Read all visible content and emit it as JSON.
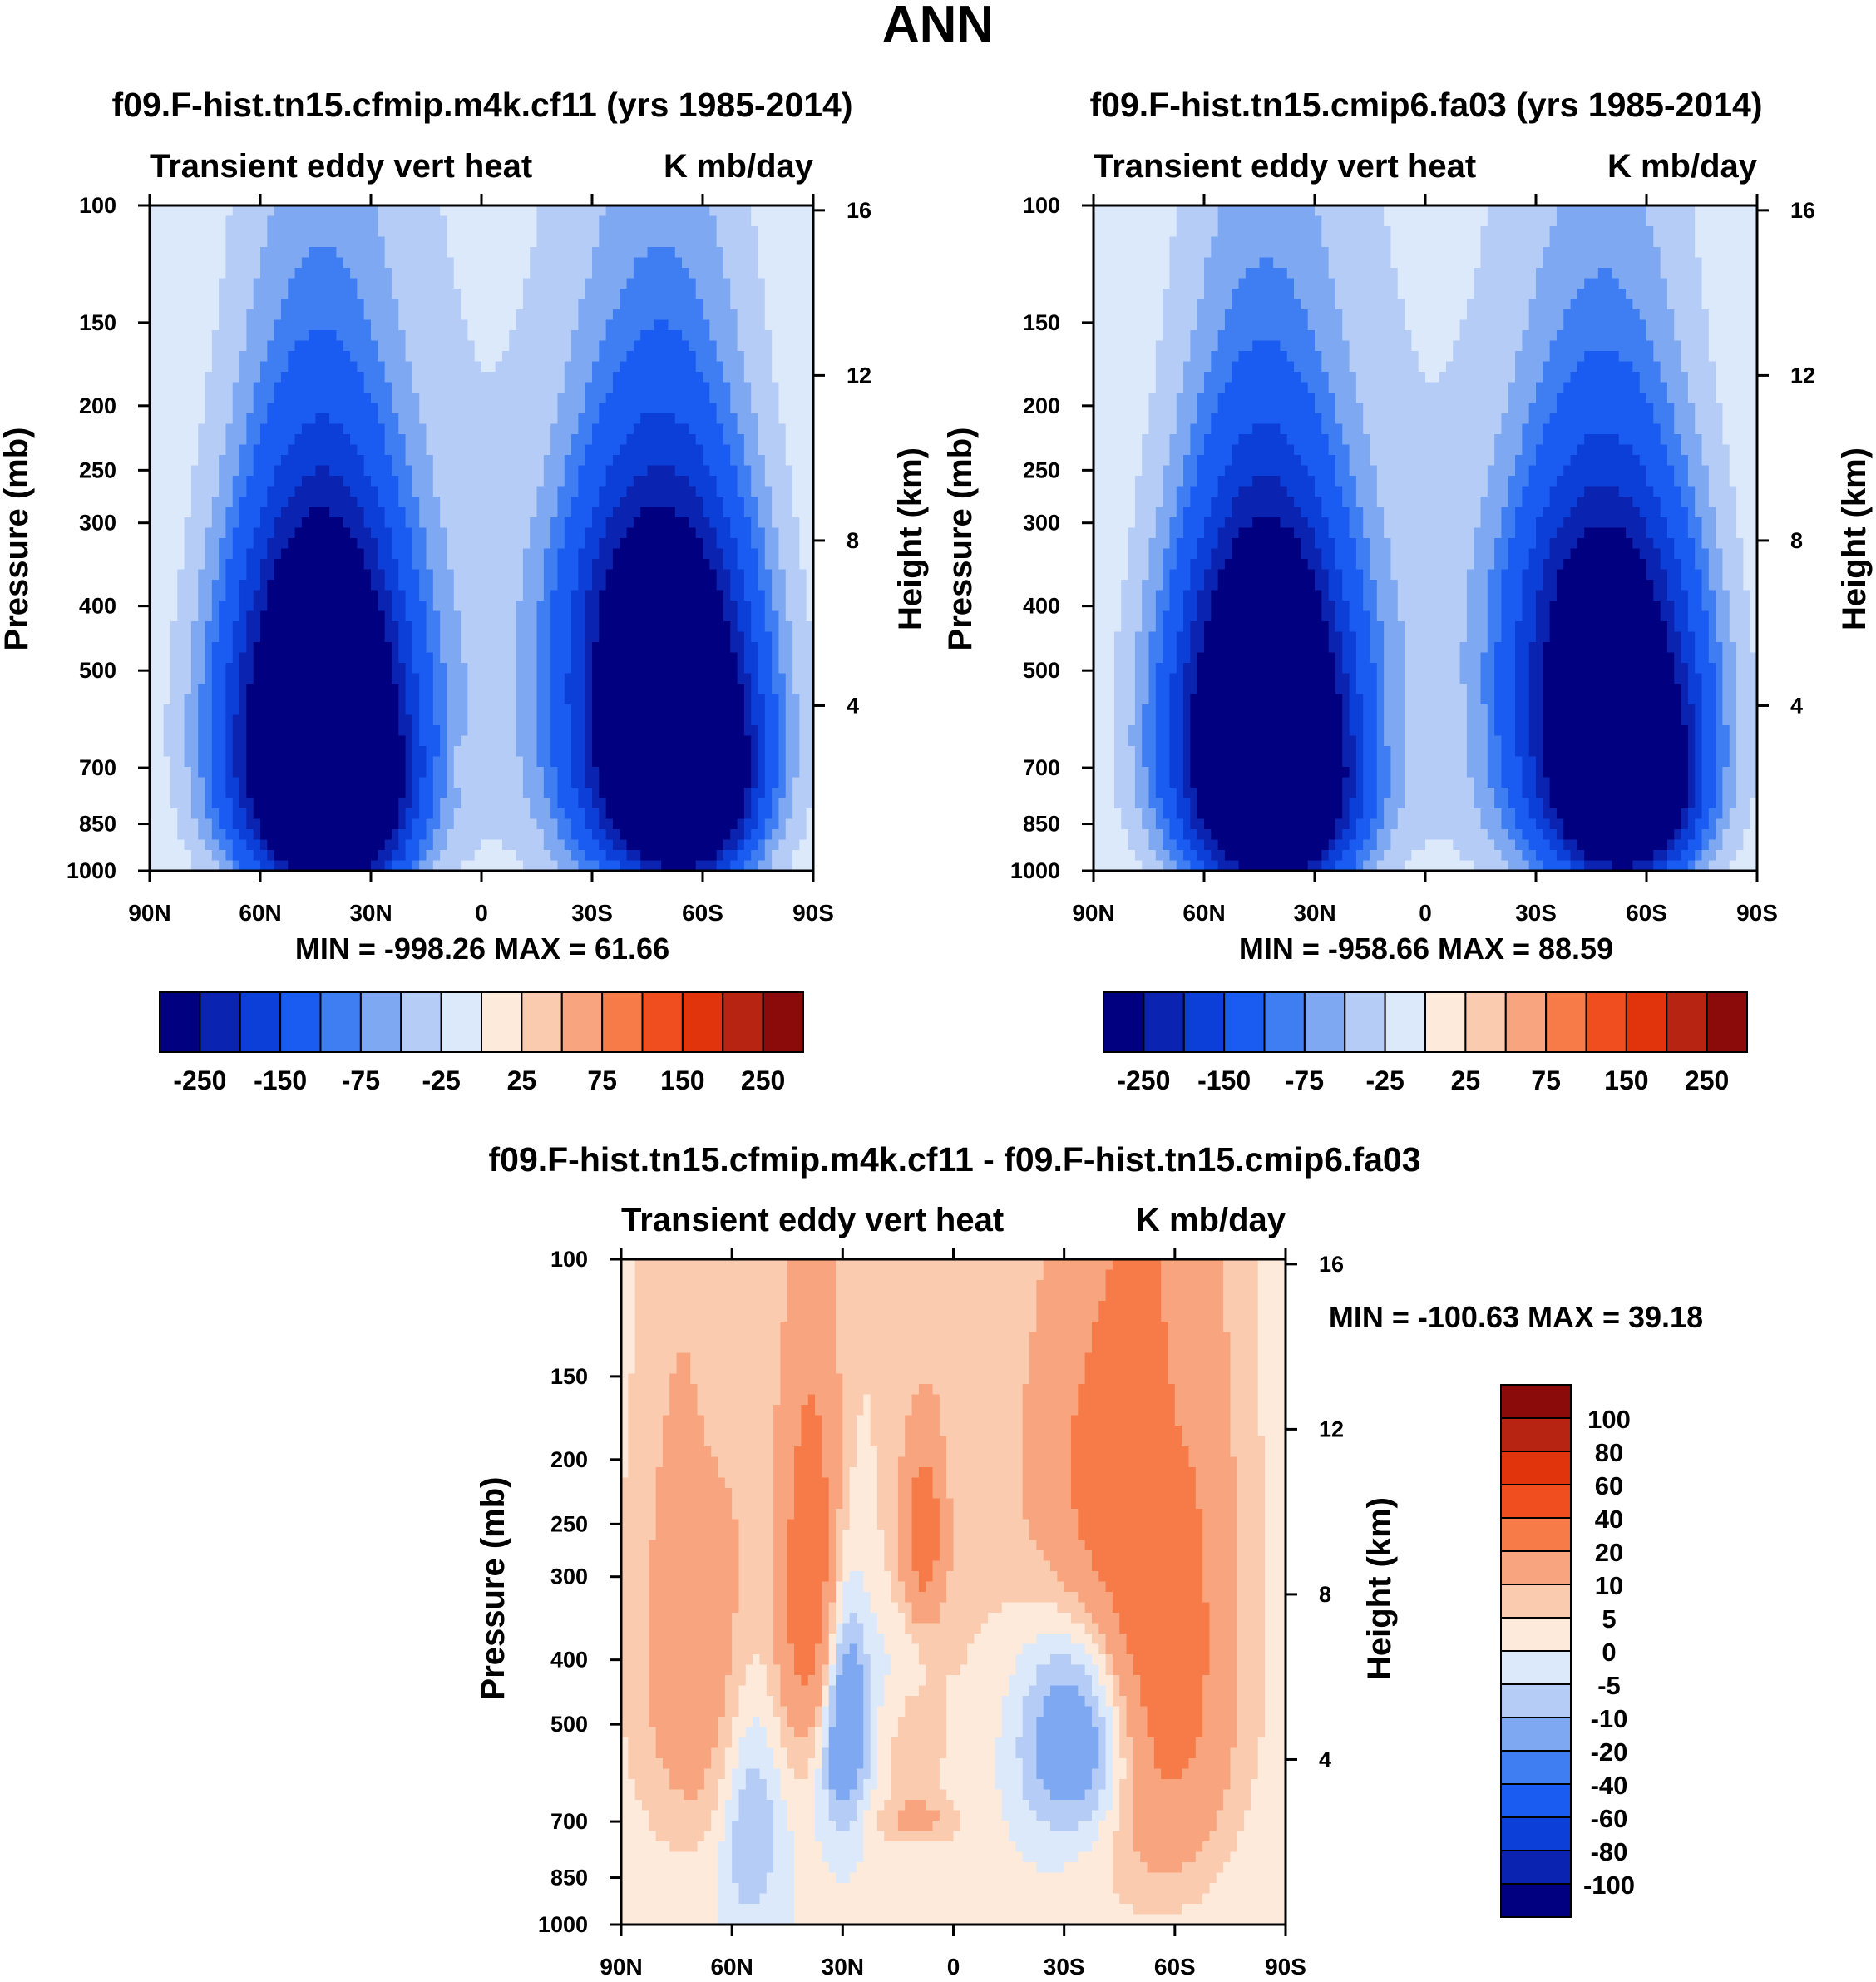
{
  "figure": {
    "title": "ANN"
  },
  "colors": {
    "abs": [
      "#000080",
      "#0a23b0",
      "#0c3ed8",
      "#1a5cf2",
      "#3e7ef2",
      "#7fa8f2",
      "#b4ccf6",
      "#dce9fb",
      "#fdeadb",
      "#fbcbb0",
      "#f8a47e",
      "#f67b48",
      "#f04e1e",
      "#e1340c",
      "#b72412",
      "#8b0b0b"
    ],
    "diff": [
      "#000080",
      "#0a23b0",
      "#0c3ed8",
      "#1a5cf2",
      "#3e7ef2",
      "#7fa8f2",
      "#b4ccf6",
      "#dce9fb",
      "#fdeadb",
      "#fbcbb0",
      "#f8a47e",
      "#f67b48",
      "#f04e1e",
      "#e1340c",
      "#b72412",
      "#8b0b0b"
    ]
  },
  "chart_data": [
    {
      "id": "p1",
      "type": "contour",
      "title": "f09.F-hist.tn15.cfmip.m4k.cf11 (yrs 1985-2014)",
      "left_label": "Transient eddy vert heat",
      "right_label": "K mb/day",
      "ylabel": "Pressure (mb)",
      "y2label": "Height (km)",
      "xticks": [
        "90N",
        "60N",
        "30N",
        "0",
        "30S",
        "60S",
        "90S"
      ],
      "yticks": [
        "100",
        "150",
        "200",
        "250",
        "300",
        "400",
        "500",
        "700",
        "850",
        "1000"
      ],
      "y2ticks": [
        "16",
        "12",
        "8",
        "4"
      ],
      "ylim": [
        1000,
        100
      ],
      "min_max": "MIN = -998.26  MAX =  61.66",
      "levels": [
        -250,
        -200,
        -150,
        -100,
        -75,
        -50,
        -25,
        0,
        25,
        50,
        75,
        100,
        150,
        200,
        250
      ],
      "colorbar_labels": [
        "-250",
        "-150",
        "-75",
        "-25",
        "25",
        "75",
        "150",
        "250"
      ],
      "features": [
        {
          "lat": 45,
          "p": 620,
          "value": -400,
          "sx": 17,
          "sp": 260
        },
        {
          "lat": 40,
          "p": 780,
          "value": -350,
          "sx": 12,
          "sp": 180
        },
        {
          "lat": 42,
          "p": 400,
          "value": -90,
          "sx": 12,
          "sp": 120
        },
        {
          "lat": -50,
          "p": 620,
          "value": -420,
          "sx": 17,
          "sp": 260
        },
        {
          "lat": -55,
          "p": 740,
          "value": -400,
          "sx": 10,
          "sp": 150
        },
        {
          "lat": -45,
          "p": 380,
          "value": -90,
          "sx": 15,
          "sp": 110
        },
        {
          "lat": 0,
          "p": 450,
          "value": -25,
          "sx": 35,
          "sp": 450
        },
        {
          "lat": 5,
          "p": 690,
          "value": 15,
          "sx": 4,
          "sp": 40
        }
      ]
    },
    {
      "id": "p2",
      "type": "contour",
      "title": "f09.F-hist.tn15.cmip6.fa03 (yrs 1985-2014)",
      "left_label": "Transient eddy vert heat",
      "right_label": "K mb/day",
      "ylabel": "Pressure (mb)",
      "y2label": "Height (km)",
      "xticks": [
        "90N",
        "60N",
        "30N",
        "0",
        "30S",
        "60S",
        "90S"
      ],
      "yticks": [
        "100",
        "150",
        "200",
        "250",
        "300",
        "400",
        "500",
        "700",
        "850",
        "1000"
      ],
      "y2ticks": [
        "16",
        "12",
        "8",
        "4"
      ],
      "ylim": [
        1000,
        100
      ],
      "min_max": "MIN = -958.66  MAX =  88.59",
      "levels": [
        -250,
        -200,
        -150,
        -100,
        -75,
        -50,
        -25,
        0,
        25,
        50,
        75,
        100,
        150,
        200,
        250
      ],
      "colorbar_labels": [
        "-250",
        "-150",
        "-75",
        "-25",
        "25",
        "75",
        "150",
        "250"
      ],
      "features": [
        {
          "lat": 45,
          "p": 620,
          "value": -380,
          "sx": 17,
          "sp": 260
        },
        {
          "lat": 40,
          "p": 780,
          "value": -330,
          "sx": 12,
          "sp": 180
        },
        {
          "lat": 42,
          "p": 400,
          "value": -90,
          "sx": 12,
          "sp": 120
        },
        {
          "lat": -50,
          "p": 620,
          "value": -380,
          "sx": 17,
          "sp": 260
        },
        {
          "lat": -55,
          "p": 760,
          "value": -330,
          "sx": 10,
          "sp": 150
        },
        {
          "lat": -45,
          "p": 380,
          "value": -80,
          "sx": 15,
          "sp": 110
        },
        {
          "lat": 0,
          "p": 450,
          "value": -25,
          "sx": 35,
          "sp": 450
        },
        {
          "lat": -5,
          "p": 590,
          "value": 15,
          "sx": 4,
          "sp": 40
        },
        {
          "lat": 12,
          "p": 590,
          "value": 15,
          "sx": 4,
          "sp": 40
        }
      ]
    },
    {
      "id": "p3",
      "type": "contour",
      "title": "f09.F-hist.tn15.cfmip.m4k.cf11 - f09.F-hist.tn15.cmip6.fa03",
      "left_label": "Transient eddy vert heat",
      "right_label": "K mb/day",
      "ylabel": "Pressure (mb)",
      "y2label": "Height (km)",
      "xticks": [
        "90N",
        "60N",
        "30N",
        "0",
        "30S",
        "60S",
        "90S"
      ],
      "yticks": [
        "100",
        "150",
        "200",
        "250",
        "300",
        "400",
        "500",
        "700",
        "850",
        "1000"
      ],
      "y2ticks": [
        "16",
        "12",
        "8",
        "4"
      ],
      "ylim": [
        1000,
        100
      ],
      "min_max": "MIN = -100.63  MAX =  39.18",
      "levels": [
        -100,
        -80,
        -60,
        -40,
        -20,
        -10,
        -5,
        0,
        5,
        10,
        20,
        40,
        60,
        80,
        100
      ],
      "colorbar_labels": [
        "100",
        "80",
        "60",
        "40",
        "20",
        "10",
        "5",
        "0",
        "-5",
        "-10",
        "-20",
        "-40",
        "-60",
        "-80",
        "-100"
      ],
      "features": [
        {
          "lat": 0,
          "p": 250,
          "value": 6,
          "sx": 60,
          "sp": 350
        },
        {
          "lat": 70,
          "p": 400,
          "value": 14,
          "sx": 12,
          "sp": 250
        },
        {
          "lat": 38,
          "p": 320,
          "value": 28,
          "sx": 6,
          "sp": 150
        },
        {
          "lat": 8,
          "p": 260,
          "value": 22,
          "sx": 4,
          "sp": 60
        },
        {
          "lat": -55,
          "p": 400,
          "value": 28,
          "sx": 14,
          "sp": 300
        },
        {
          "lat": -35,
          "p": 230,
          "value": 13,
          "sx": 12,
          "sp": 100
        },
        {
          "lat": 30,
          "p": 480,
          "value": -28,
          "sx": 5,
          "sp": 150
        },
        {
          "lat": -35,
          "p": 520,
          "value": -28,
          "sx": 12,
          "sp": 150
        },
        {
          "lat": 55,
          "p": 680,
          "value": -14,
          "sx": 6,
          "sp": 200
        },
        {
          "lat": 10,
          "p": 700,
          "value": 9,
          "sx": 8,
          "sp": 40
        },
        {
          "lat": 10,
          "p": 550,
          "value": 6,
          "sx": 4,
          "sp": 80
        },
        {
          "lat": 15,
          "p": 400,
          "value": -5,
          "sx": 6,
          "sp": 60
        },
        {
          "lat": 65,
          "p": 120,
          "value": -4,
          "sx": 4,
          "sp": 80
        },
        {
          "lat": -60,
          "p": 150,
          "value": -4,
          "sx": 4,
          "sp": 100
        }
      ]
    }
  ]
}
